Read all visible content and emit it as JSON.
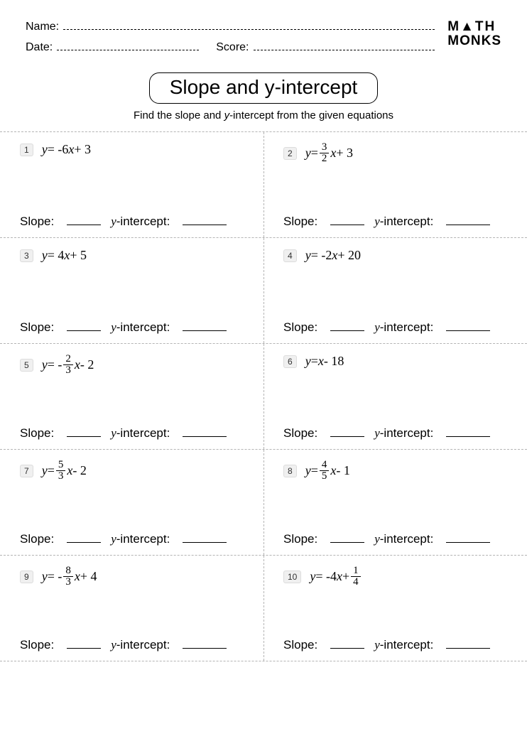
{
  "header": {
    "name_label": "Name:",
    "date_label": "Date:",
    "score_label": "Score:",
    "logo_line1": "M▲TH",
    "logo_line2": "MONKS"
  },
  "title": "Slope and y-intercept",
  "instructions_pre": "Find the slope and ",
  "instructions_ital": "y",
  "instructions_post": "-intercept from the given equations",
  "answer_labels": {
    "slope": "Slope:",
    "yint_y": "y",
    "yint_rest": "-intercept:"
  },
  "problems": [
    {
      "num": "1",
      "eq_html": "<span>y</span><span class='up'> = -6</span><span>x</span><span class='up'> + 3</span>"
    },
    {
      "num": "2",
      "eq_html": "<span>y</span><span class='up'> = </span><span class='frac'><span class='n'>3</span><span class='d'>2</span></span><span>x</span><span class='up'> + 3</span>"
    },
    {
      "num": "3",
      "eq_html": "<span>y</span><span class='up'> = 4</span><span>x</span><span class='up'> + 5</span>"
    },
    {
      "num": "4",
      "eq_html": "<span>y</span><span class='up'> = -2</span><span>x</span><span class='up'> + 20</span>"
    },
    {
      "num": "5",
      "eq_html": "<span>y</span><span class='up'> = - </span><span class='frac'><span class='n'>2</span><span class='d'>3</span></span><span>x</span><span class='up'> - 2</span>"
    },
    {
      "num": "6",
      "eq_html": "<span>y</span><span class='up'> = </span><span>x</span><span class='up'> - 18</span>"
    },
    {
      "num": "7",
      "eq_html": "<span>y</span><span class='up'> = </span><span class='frac'><span class='n'>5</span><span class='d'>3</span></span><span>x</span><span class='up'> - 2</span>"
    },
    {
      "num": "8",
      "eq_html": "<span>y</span><span class='up'> = </span><span class='frac'><span class='n'>4</span><span class='d'>5</span></span><span>x</span><span class='up'> - 1</span>"
    },
    {
      "num": "9",
      "eq_html": "<span>y</span><span class='up'> = - </span><span class='frac'><span class='n'>8</span><span class='d'>3</span></span><span>x</span><span class='up'> + 4</span>"
    },
    {
      "num": "10",
      "eq_html": "<span>y</span><span class='up'> = -4</span><span>x</span><span class='up'> + </span><span class='frac'><span class='n'>1</span><span class='d'>4</span></span>"
    }
  ],
  "colors": {
    "dash": "#b4b4b4",
    "text": "#000000",
    "background": "#ffffff",
    "badge_bg": "#f0f0f0",
    "badge_border": "#dcdcdc"
  }
}
